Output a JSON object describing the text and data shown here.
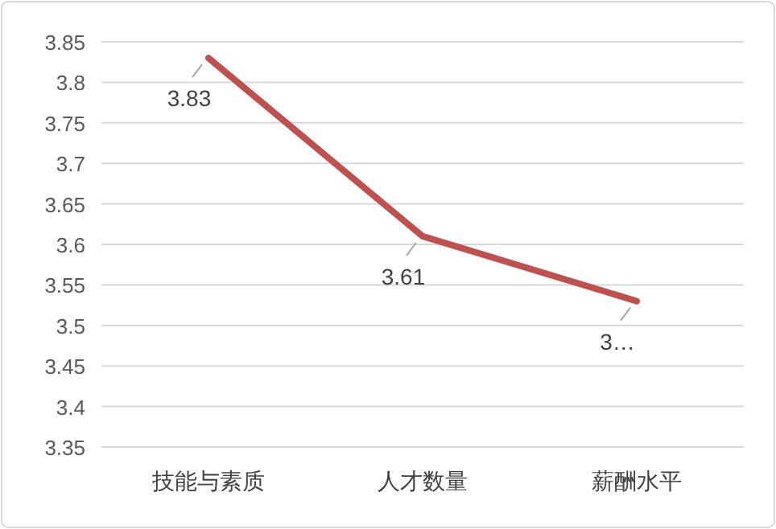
{
  "chart_data": {
    "type": "line",
    "categories": [
      "技能与素质",
      "人才数量",
      "薪酬水平"
    ],
    "series": [
      {
        "color": "#c0504d",
        "values": [
          3.83,
          3.61,
          3.53
        ],
        "value_labels": [
          "3.83",
          "3.61",
          "3…"
        ]
      }
    ],
    "ylim": [
      3.35,
      3.85
    ],
    "yticks": [
      3.35,
      3.4,
      3.45,
      3.5,
      3.55,
      3.6,
      3.65,
      3.7,
      3.75,
      3.8,
      3.85
    ],
    "grid": "y",
    "marker": "none",
    "line_style": "solid"
  }
}
